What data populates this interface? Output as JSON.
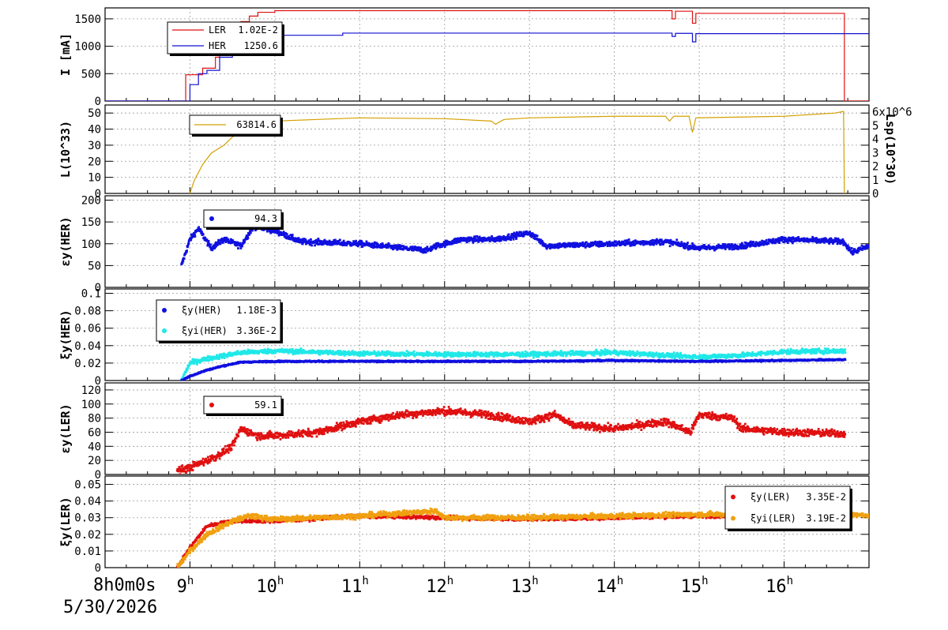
{
  "footer": {
    "start_time": "8h0m0s",
    "date": "5/30/2026"
  },
  "time_axis": {
    "range_h": [
      8.0,
      17.0
    ],
    "ticks": [
      {
        "h": 9,
        "label": "9",
        "sup": "h"
      },
      {
        "h": 10,
        "label": "10",
        "sup": "h"
      },
      {
        "h": 11,
        "label": "11",
        "sup": "h"
      },
      {
        "h": 12,
        "label": "12",
        "sup": "h"
      },
      {
        "h": 13,
        "label": "13",
        "sup": "h"
      },
      {
        "h": 14,
        "label": "14",
        "sup": "h"
      },
      {
        "h": 15,
        "label": "15",
        "sup": "h"
      },
      {
        "h": 16,
        "label": "16",
        "sup": "h"
      }
    ]
  },
  "chart_data": [
    {
      "id": "current",
      "type": "line",
      "ylabel": "I [mA]",
      "ylim": [
        0,
        1700
      ],
      "yticks": [
        0,
        500,
        1000,
        1500
      ],
      "grid": true,
      "legend": [
        {
          "label": "LER",
          "value": "1.02E-2",
          "color": "#e01010",
          "marker": "line"
        },
        {
          "label": "HER",
          "value": "1250.6",
          "color": "#1010d0",
          "marker": "line"
        }
      ],
      "series": [
        {
          "name": "LER",
          "color": "#e01010",
          "step": true,
          "points": [
            [
              8.0,
              0
            ],
            [
              8.88,
              0
            ],
            [
              8.95,
              480
            ],
            [
              9.1,
              480
            ],
            [
              9.15,
              600
            ],
            [
              9.3,
              800
            ],
            [
              9.35,
              1000
            ],
            [
              9.5,
              1300
            ],
            [
              9.6,
              1450
            ],
            [
              9.7,
              1550
            ],
            [
              9.8,
              1620
            ],
            [
              10.0,
              1650
            ],
            [
              14.65,
              1650
            ],
            [
              14.68,
              1500
            ],
            [
              14.72,
              1640
            ],
            [
              14.88,
              1640
            ],
            [
              14.92,
              1420
            ],
            [
              14.96,
              1600
            ],
            [
              15.5,
              1600
            ],
            [
              16.7,
              1600
            ],
            [
              16.71,
              0
            ],
            [
              17.0,
              0
            ]
          ]
        },
        {
          "name": "HER",
          "color": "#1010d0",
          "step": true,
          "points": [
            [
              8.0,
              0
            ],
            [
              8.92,
              0
            ],
            [
              9.0,
              300
            ],
            [
              9.1,
              500
            ],
            [
              9.2,
              560
            ],
            [
              9.35,
              800
            ],
            [
              9.5,
              960
            ],
            [
              9.6,
              1100
            ],
            [
              9.7,
              1150
            ],
            [
              9.8,
              1200
            ],
            [
              10.5,
              1200
            ],
            [
              10.8,
              1240
            ],
            [
              14.65,
              1240
            ],
            [
              14.68,
              1180
            ],
            [
              14.72,
              1235
            ],
            [
              14.88,
              1235
            ],
            [
              14.92,
              1080
            ],
            [
              14.96,
              1230
            ],
            [
              17.0,
              1240
            ]
          ]
        }
      ]
    },
    {
      "id": "luminosity",
      "type": "line",
      "ylabel": "L(10^33)",
      "ylim": [
        0,
        55
      ],
      "yticks": [
        0,
        10,
        20,
        30,
        40,
        50
      ],
      "y2label": "Lsp(10^30)",
      "y2lim": [
        0,
        6.5
      ],
      "y2ticks": [
        "0",
        "1",
        "2",
        "3",
        "4",
        "5",
        "6x10^6"
      ],
      "grid": true,
      "legend": [
        {
          "label": "",
          "value": "63814.6",
          "color": "#d4a000",
          "marker": "line"
        }
      ],
      "series": [
        {
          "name": "L",
          "color": "#d4a000",
          "points": [
            [
              9.0,
              0
            ],
            [
              9.05,
              8
            ],
            [
              9.15,
              18
            ],
            [
              9.25,
              25
            ],
            [
              9.4,
              30
            ],
            [
              9.5,
              35
            ],
            [
              9.6,
              40
            ],
            [
              9.7,
              42
            ],
            [
              9.8,
              44
            ],
            [
              10.0,
              45
            ],
            [
              10.5,
              46
            ],
            [
              11.0,
              47
            ],
            [
              12.0,
              46.5
            ],
            [
              12.55,
              45
            ],
            [
              12.6,
              43
            ],
            [
              12.7,
              46
            ],
            [
              13.0,
              47
            ],
            [
              14.0,
              48
            ],
            [
              14.6,
              48
            ],
            [
              14.65,
              45
            ],
            [
              14.7,
              48
            ],
            [
              14.88,
              48
            ],
            [
              14.92,
              38
            ],
            [
              14.96,
              47
            ],
            [
              15.5,
              47.5
            ],
            [
              16.0,
              48
            ],
            [
              16.6,
              50
            ],
            [
              16.7,
              51
            ],
            [
              16.71,
              0
            ]
          ]
        }
      ]
    },
    {
      "id": "epsilon_her",
      "type": "scatter",
      "ylabel": "εy(HER)",
      "ylim": [
        0,
        210
      ],
      "yticks": [
        0,
        50,
        100,
        150,
        200
      ],
      "grid": true,
      "legend": [
        {
          "label": "",
          "value": "94.3",
          "color": "#1010e0",
          "marker": "dot"
        }
      ],
      "series": [
        {
          "name": "εy(HER)",
          "color": "#1010e0",
          "start": 8.9,
          "end": 17.0,
          "noise": 6,
          "profile": [
            [
              8.9,
              50
            ],
            [
              9.0,
              110
            ],
            [
              9.1,
              135
            ],
            [
              9.25,
              90
            ],
            [
              9.4,
              110
            ],
            [
              9.6,
              95
            ],
            [
              9.75,
              140
            ],
            [
              10.0,
              130
            ],
            [
              10.3,
              105
            ],
            [
              11.0,
              100
            ],
            [
              11.5,
              90
            ],
            [
              11.8,
              85
            ],
            [
              11.9,
              95
            ],
            [
              12.2,
              110
            ],
            [
              12.6,
              110
            ],
            [
              13.0,
              125
            ],
            [
              13.2,
              95
            ],
            [
              14.0,
              100
            ],
            [
              14.6,
              105
            ],
            [
              15.0,
              90
            ],
            [
              15.5,
              95
            ],
            [
              16.0,
              110
            ],
            [
              16.7,
              105
            ],
            [
              16.8,
              80
            ],
            [
              17.0,
              95
            ]
          ]
        }
      ]
    },
    {
      "id": "xi_her",
      "type": "scatter",
      "ylabel": "ξy(HER)",
      "ylim": [
        0,
        0.105
      ],
      "yticks": [
        0,
        0.02,
        0.04,
        0.06,
        0.08,
        0.1
      ],
      "ytick_labels": [
        "0",
        "0.02",
        "0.04",
        "0.06",
        "0.08",
        "0.1"
      ],
      "grid": true,
      "legend": [
        {
          "label": "ξy(HER)",
          "value": "1.18E-3",
          "color": "#1010e0",
          "marker": "dot"
        },
        {
          "label": "ξyi(HER)",
          "value": "3.36E-2",
          "color": "#20e8e8",
          "marker": "dot"
        }
      ],
      "series": [
        {
          "name": "ξyi(HER)",
          "color": "#20e8e8",
          "start": 8.9,
          "end": 16.72,
          "noise": 0.0025,
          "profile": [
            [
              8.9,
              0.0
            ],
            [
              9.0,
              0.02
            ],
            [
              9.2,
              0.025
            ],
            [
              9.6,
              0.032
            ],
            [
              10.0,
              0.034
            ],
            [
              11.0,
              0.031
            ],
            [
              12.0,
              0.03
            ],
            [
              13.0,
              0.03
            ],
            [
              14.0,
              0.032
            ],
            [
              15.0,
              0.027
            ],
            [
              15.5,
              0.029
            ],
            [
              16.0,
              0.033
            ],
            [
              16.7,
              0.034
            ]
          ]
        },
        {
          "name": "ξy(HER)",
          "color": "#1010e0",
          "start": 8.9,
          "end": 16.72,
          "noise": 0.0008,
          "profile": [
            [
              8.9,
              0.0
            ],
            [
              9.0,
              0.005
            ],
            [
              9.2,
              0.012
            ],
            [
              9.4,
              0.017
            ],
            [
              9.6,
              0.021
            ],
            [
              10.0,
              0.022
            ],
            [
              11.0,
              0.022
            ],
            [
              12.0,
              0.022
            ],
            [
              13.0,
              0.022
            ],
            [
              14.0,
              0.023
            ],
            [
              15.0,
              0.022
            ],
            [
              16.0,
              0.023
            ],
            [
              16.7,
              0.024
            ]
          ]
        }
      ]
    },
    {
      "id": "epsilon_ler",
      "type": "scatter",
      "ylabel": "εy(LER)",
      "ylim": [
        0,
        130
      ],
      "yticks": [
        0,
        20,
        40,
        60,
        80,
        100,
        120
      ],
      "grid": true,
      "legend": [
        {
          "label": "",
          "value": "59.1",
          "color": "#e01010",
          "marker": "dot"
        }
      ],
      "series": [
        {
          "name": "εy(LER)",
          "color": "#e01010",
          "start": 8.85,
          "end": 16.72,
          "noise": 5,
          "profile": [
            [
              8.85,
              5
            ],
            [
              9.0,
              10
            ],
            [
              9.3,
              25
            ],
            [
              9.5,
              40
            ],
            [
              9.6,
              65
            ],
            [
              9.8,
              55
            ],
            [
              10.0,
              55
            ],
            [
              10.5,
              60
            ],
            [
              11.0,
              75
            ],
            [
              11.5,
              85
            ],
            [
              12.0,
              90
            ],
            [
              12.5,
              85
            ],
            [
              13.0,
              75
            ],
            [
              13.3,
              85
            ],
            [
              13.5,
              70
            ],
            [
              14.0,
              65
            ],
            [
              14.6,
              75
            ],
            [
              14.9,
              60
            ],
            [
              15.0,
              85
            ],
            [
              15.4,
              80
            ],
            [
              15.5,
              65
            ],
            [
              16.0,
              60
            ],
            [
              16.7,
              58
            ]
          ]
        }
      ]
    },
    {
      "id": "xi_ler",
      "type": "scatter",
      "ylabel": "ξy(LER)",
      "ylim": [
        0,
        0.055
      ],
      "yticks": [
        0,
        0.01,
        0.02,
        0.03,
        0.04,
        0.05
      ],
      "ytick_labels": [
        "0",
        "0.01",
        "0.02",
        "0.03",
        "0.04",
        "0.05"
      ],
      "grid": true,
      "legend": [
        {
          "label": "ξy(LER)",
          "value": "3.35E-2",
          "color": "#e01010",
          "marker": "dot"
        },
        {
          "label": "ξyi(LER)",
          "value": "3.19E-2",
          "color": "#f0a010",
          "marker": "dot"
        }
      ],
      "series": [
        {
          "name": "ξy(LER)",
          "color": "#e01010",
          "start": 8.85,
          "end": 16.72,
          "noise": 0.001,
          "profile": [
            [
              8.85,
              0.0
            ],
            [
              9.0,
              0.012
            ],
            [
              9.2,
              0.025
            ],
            [
              9.5,
              0.028
            ],
            [
              10.0,
              0.028
            ],
            [
              11.0,
              0.031
            ],
            [
              12.0,
              0.03
            ],
            [
              13.0,
              0.029
            ],
            [
              14.0,
              0.03
            ],
            [
              15.0,
              0.031
            ],
            [
              16.0,
              0.031
            ],
            [
              16.7,
              0.031
            ]
          ]
        },
        {
          "name": "ξyi(LER)",
          "color": "#f0a010",
          "start": 8.85,
          "end": 17.0,
          "noise": 0.0015,
          "profile": [
            [
              8.85,
              0.0
            ],
            [
              9.0,
              0.01
            ],
            [
              9.2,
              0.02
            ],
            [
              9.5,
              0.028
            ],
            [
              9.7,
              0.031
            ],
            [
              10.0,
              0.029
            ],
            [
              11.0,
              0.031
            ],
            [
              11.9,
              0.034
            ],
            [
              12.0,
              0.03
            ],
            [
              13.0,
              0.03
            ],
            [
              14.0,
              0.031
            ],
            [
              15.0,
              0.032
            ],
            [
              16.0,
              0.032
            ],
            [
              16.7,
              0.033
            ],
            [
              17.0,
              0.031
            ]
          ]
        }
      ]
    }
  ]
}
